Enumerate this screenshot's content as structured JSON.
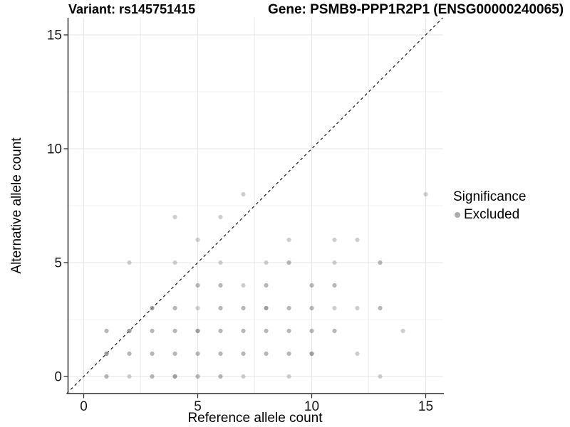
{
  "header": {
    "title_left": "Variant: rs145751415",
    "title_right": "Gene: PSMB9-PPP1R2P1 (ENSG00000240065)"
  },
  "legend": {
    "title": "Significance",
    "entries": [
      {
        "label": "Excluded",
        "symbol": "circle-icon",
        "color": "#ababab"
      }
    ]
  },
  "chart_data": {
    "type": "scatter",
    "xlabel": "Reference allele count",
    "ylabel": "Alternative allele count",
    "x_ticks": [
      0,
      5,
      10,
      15
    ],
    "y_ticks": [
      0,
      5,
      10,
      15
    ],
    "x_minor_ticks": [
      2.5,
      7.5,
      12.5
    ],
    "y_minor_ticks": [
      2.5,
      7.5,
      12.5
    ],
    "xlim": [
      -0.75,
      15.75
    ],
    "ylim": [
      -0.75,
      15.75
    ],
    "grid": true,
    "legend_position": "right",
    "identity_line": {
      "style": "dashed",
      "equation": "y = x",
      "from": [
        -0.75,
        -0.75
      ],
      "to": [
        15.75,
        15.75
      ]
    },
    "point_color": "#878787",
    "points_format": "[ref_allele_count, alt_allele_count, opacity]",
    "points": [
      [
        1,
        0,
        0.6
      ],
      [
        2,
        0,
        0.4
      ],
      [
        3,
        0,
        0.6
      ],
      [
        4,
        0,
        0.8
      ],
      [
        5,
        0,
        0.6
      ],
      [
        6,
        0,
        0.6
      ],
      [
        7,
        0,
        0.4
      ],
      [
        9,
        0,
        0.4
      ],
      [
        13,
        0,
        0.4
      ],
      [
        1,
        1,
        0.8
      ],
      [
        2,
        1,
        0.6
      ],
      [
        3,
        1,
        0.6
      ],
      [
        4,
        1,
        0.6
      ],
      [
        5,
        1,
        0.6
      ],
      [
        6,
        1,
        0.6
      ],
      [
        7,
        1,
        0.6
      ],
      [
        8,
        1,
        0.6
      ],
      [
        9,
        1,
        0.6
      ],
      [
        10,
        1,
        0.8
      ],
      [
        12,
        1,
        0.4
      ],
      [
        1,
        2,
        0.6
      ],
      [
        2,
        2,
        0.8
      ],
      [
        3,
        2,
        0.6
      ],
      [
        4,
        2,
        0.6
      ],
      [
        5,
        2,
        0.8
      ],
      [
        6,
        2,
        0.6
      ],
      [
        7,
        2,
        0.6
      ],
      [
        8,
        2,
        0.6
      ],
      [
        9,
        2,
        0.6
      ],
      [
        10,
        2,
        0.6
      ],
      [
        11,
        2,
        0.6
      ],
      [
        14,
        2,
        0.4
      ],
      [
        3,
        3,
        0.8
      ],
      [
        4,
        3,
        0.6
      ],
      [
        5,
        3,
        0.4
      ],
      [
        6,
        3,
        0.6
      ],
      [
        7,
        3,
        0.6
      ],
      [
        8,
        3,
        0.8
      ],
      [
        9,
        3,
        0.6
      ],
      [
        10,
        3,
        0.6
      ],
      [
        11,
        3,
        0.4
      ],
      [
        12,
        3,
        0.4
      ],
      [
        13,
        3,
        0.6
      ],
      [
        5,
        4,
        0.6
      ],
      [
        6,
        4,
        0.6
      ],
      [
        7,
        4,
        0.4
      ],
      [
        8,
        4,
        0.6
      ],
      [
        10,
        4,
        0.6
      ],
      [
        11,
        4,
        0.6
      ],
      [
        2,
        5,
        0.4
      ],
      [
        4,
        5,
        0.4
      ],
      [
        6,
        5,
        0.4
      ],
      [
        8,
        5,
        0.4
      ],
      [
        9,
        5,
        0.6
      ],
      [
        11,
        5,
        0.4
      ],
      [
        13,
        5,
        0.6
      ],
      [
        5,
        6,
        0.4
      ],
      [
        9,
        6,
        0.4
      ],
      [
        11,
        6,
        0.4
      ],
      [
        12,
        6,
        0.4
      ],
      [
        4,
        7,
        0.4
      ],
      [
        6,
        7,
        0.4
      ],
      [
        7,
        8,
        0.4
      ],
      [
        15,
        8,
        0.4
      ]
    ]
  }
}
